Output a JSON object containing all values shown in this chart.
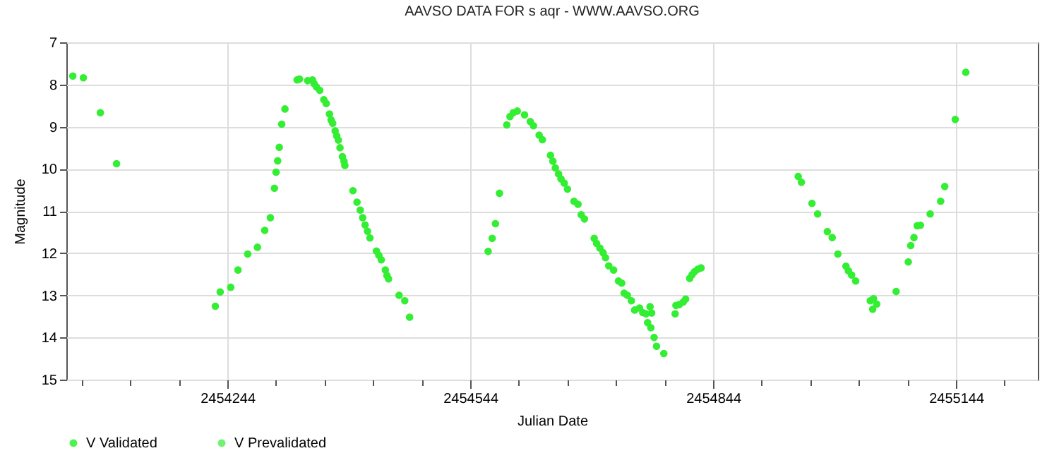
{
  "chart_data": {
    "type": "scatter",
    "title": "AAVSO DATA FOR s aqr - WWW.AAVSO.ORG",
    "xlabel": "Julian Date",
    "ylabel": "Magnitude",
    "xlim": [
      2454045,
      2455245
    ],
    "xticks": [
      {
        "value": 2454064,
        "label": null
      },
      {
        "value": 2454124,
        "label": null
      },
      {
        "value": 2454184,
        "label": null
      },
      2454244,
      {
        "value": 2454304,
        "label": null
      },
      {
        "value": 2454364,
        "label": null
      },
      {
        "value": 2454424,
        "label": null
      },
      {
        "value": 2454484,
        "label": null
      },
      2454544,
      {
        "value": 2454604,
        "label": null
      },
      {
        "value": 2454664,
        "label": null
      },
      {
        "value": 2454724,
        "label": null
      },
      {
        "value": 2454784,
        "label": null
      },
      2454844,
      {
        "value": 2454904,
        "label": null
      },
      {
        "value": 2454964,
        "label": null
      },
      {
        "value": 2455024,
        "label": null
      },
      {
        "value": 2455084,
        "label": null
      },
      2455144,
      {
        "value": 2455204,
        "label": null
      }
    ],
    "ylim": [
      15,
      7
    ],
    "yticks": [
      7,
      8,
      9,
      10,
      11,
      12,
      13,
      14,
      15
    ],
    "grid": true,
    "legend": "bottom",
    "marker": "circle",
    "series": [
      {
        "name": "V Validated",
        "color": "#00ee00"
      },
      {
        "name": "V Prevalidated",
        "color": "#33ee33",
        "x": [
          2454053,
          2454066,
          2454087,
          2454107,
          2454229,
          2454235,
          2454248,
          2454257,
          2454269,
          2454281,
          2454290,
          2454297,
          2454302,
          2454304,
          2454306,
          2454308,
          2454311,
          2454315,
          2454330,
          2454333,
          2454343,
          2454349,
          2454351,
          2454354,
          2454358,
          2454363,
          2454366,
          2454370,
          2454372,
          2454374,
          2454377,
          2454379,
          2454381,
          2454383,
          2454386,
          2454388,
          2454389,
          2454399,
          2454404,
          2454408,
          2454411,
          2454414,
          2454417,
          2454420,
          2454428,
          2454431,
          2454434,
          2454439,
          2454441,
          2454443,
          2454456,
          2454463,
          2454469,
          2454566,
          2454571,
          2454575,
          2454580,
          2454589,
          2454593,
          2454597,
          2454602,
          2454611,
          2454618,
          2454622,
          2454629,
          2454633,
          2454643,
          2454646,
          2454649,
          2454653,
          2454656,
          2454660,
          2454664,
          2454672,
          2454677,
          2454681,
          2454685,
          2454697,
          2454700,
          2454704,
          2454708,
          2454711,
          2454715,
          2454721,
          2454727,
          2454731,
          2454734,
          2454738,
          2454743,
          2454747,
          2454753,
          2454757,
          2454761,
          2454763,
          2454766,
          2454767,
          2454768,
          2454771,
          2454774,
          2454783,
          2454797,
          2454798,
          2454802,
          2454807,
          2454810,
          2454815,
          2454818,
          2454821,
          2454825,
          2454829,
          2454949,
          2454953,
          2454966,
          2454973,
          2454985,
          2454991,
          2454998,
          2455008,
          2455011,
          2455015,
          2455020,
          2455038,
          2455041,
          2455042,
          2455046,
          2455070,
          2455085,
          2455088,
          2455092,
          2455096,
          2455100,
          2455112,
          2455125,
          2455130,
          2455143,
          2455156
        ],
        "values": [
          7.8,
          7.84,
          8.67,
          9.88,
          13.26,
          12.92,
          12.81,
          12.4,
          12.02,
          11.86,
          11.46,
          11.16,
          10.46,
          10.08,
          9.81,
          9.49,
          8.94,
          8.58,
          7.89,
          7.87,
          7.91,
          7.89,
          7.98,
          8.06,
          8.14,
          8.36,
          8.45,
          8.7,
          8.84,
          8.92,
          9.1,
          9.22,
          9.32,
          9.5,
          9.71,
          9.82,
          9.92,
          10.52,
          10.79,
          10.98,
          11.16,
          11.33,
          11.48,
          11.64,
          11.95,
          12.05,
          12.16,
          12.4,
          12.53,
          12.61,
          13.0,
          13.13,
          13.52,
          11.96,
          11.65,
          11.3,
          10.58,
          8.96,
          8.76,
          8.67,
          8.63,
          8.72,
          8.88,
          8.98,
          9.2,
          9.31,
          9.68,
          9.82,
          9.98,
          10.12,
          10.24,
          10.34,
          10.48,
          10.77,
          10.84,
          11.09,
          11.19,
          11.65,
          11.77,
          11.88,
          11.99,
          12.11,
          12.3,
          12.4,
          12.66,
          12.71,
          12.95,
          13.0,
          13.13,
          13.35,
          13.3,
          13.41,
          13.44,
          13.65,
          13.27,
          13.77,
          13.42,
          14.0,
          14.21,
          14.38,
          13.44,
          13.24,
          13.22,
          13.16,
          13.09,
          12.6,
          12.51,
          12.44,
          12.38,
          12.35,
          10.18,
          10.32,
          10.82,
          11.07,
          11.49,
          11.63,
          12.02,
          12.31,
          12.42,
          12.52,
          12.66,
          13.13,
          13.33,
          13.08,
          13.21,
          12.91,
          12.21,
          11.82,
          11.63,
          11.35,
          11.34,
          11.07,
          10.77,
          10.42,
          8.83,
          7.71
        ]
      }
    ]
  }
}
